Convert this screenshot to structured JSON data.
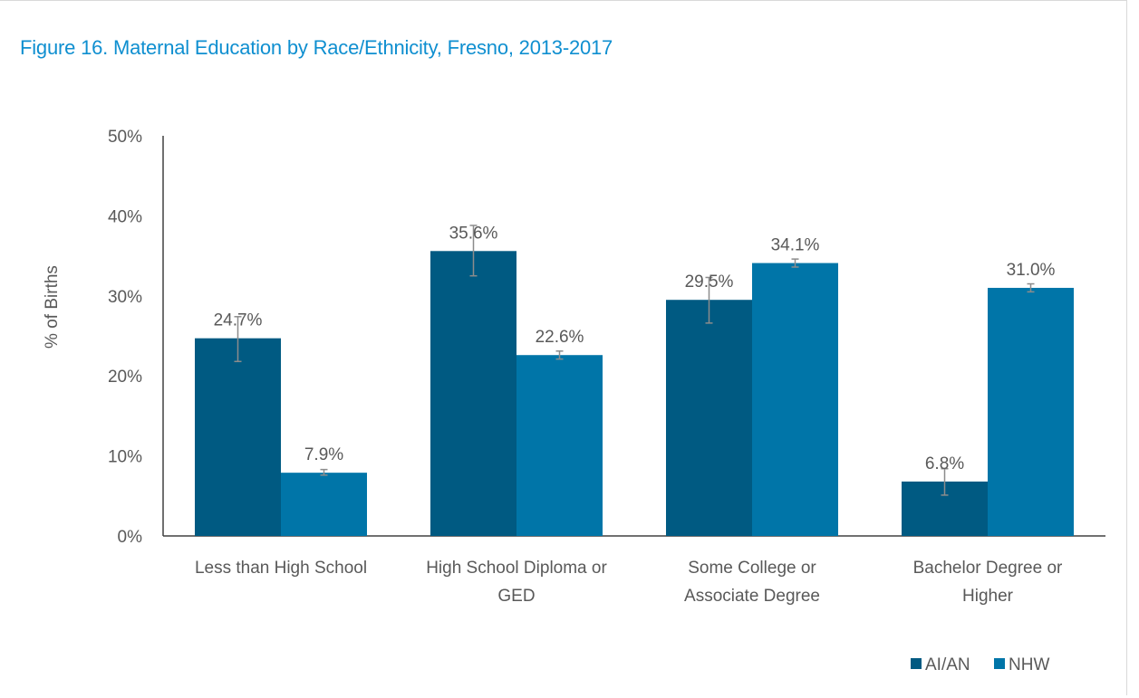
{
  "title": "Figure 16. Maternal Education by Race/Ethnicity, Fresno, 2013-2017",
  "chart_data": {
    "type": "bar",
    "title": "Figure 16. Maternal Education by Race/Ethnicity, Fresno, 2013-2017",
    "ylabel": "% of Births",
    "xlabel": "",
    "ylim": [
      0,
      50
    ],
    "yticks": [
      0,
      10,
      20,
      30,
      40,
      50
    ],
    "ytick_labels": [
      "0%",
      "10%",
      "20%",
      "30%",
      "40%",
      "50%"
    ],
    "categories": [
      [
        "Less than High School"
      ],
      [
        "High School Diploma or",
        "GED"
      ],
      [
        "Some College or",
        "Associate Degree"
      ],
      [
        "Bachelor Degree or",
        "Higher"
      ]
    ],
    "series": [
      {
        "name": "AI/AN",
        "color": "#005a82",
        "values": [
          24.7,
          35.6,
          29.5,
          6.8
        ],
        "labels": [
          "24.7%",
          "35.6%",
          "29.5%",
          "6.8%"
        ],
        "error_low": [
          21.8,
          32.5,
          26.6,
          5.1
        ],
        "error_high": [
          27.4,
          38.8,
          32.3,
          8.4
        ]
      },
      {
        "name": "NHW",
        "color": "#0075a8",
        "values": [
          7.9,
          22.6,
          34.1,
          31.0
        ],
        "labels": [
          "7.9%",
          "22.6%",
          "34.1%",
          "31.0%"
        ],
        "error_low": [
          7.6,
          22.1,
          33.6,
          30.5
        ],
        "error_high": [
          8.3,
          23.1,
          34.6,
          31.5
        ]
      }
    ],
    "grid": false,
    "error_bar_color": "#8c8c8c",
    "legend_position": "bottom-right"
  }
}
